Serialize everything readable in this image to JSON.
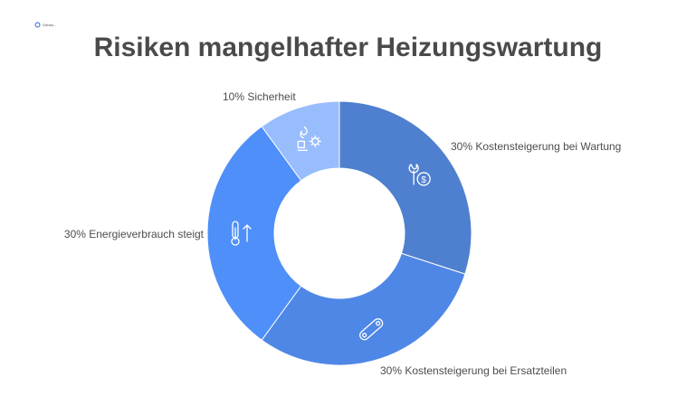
{
  "logo": {
    "text": "Gebäu..."
  },
  "title": "Risiken mangelhafter Heizungswartung",
  "chart_data": {
    "type": "pie",
    "donut": true,
    "categories": [
      "30% Kostensteigerung bei Wartung",
      "30% Kostensteigerung bei Ersatzteilen",
      "30% Energieverbrauch steigt",
      "10% Sicherheit"
    ],
    "values": [
      30,
      30,
      30,
      10
    ],
    "colors": [
      "#4f7fcf",
      "#4f87e6",
      "#4e8ff9",
      "#98bdfd"
    ],
    "icons": [
      "wrench-dollar-icon",
      "chain-link-icon",
      "thermometer-up-icon",
      "fire-gear-icon"
    ]
  }
}
